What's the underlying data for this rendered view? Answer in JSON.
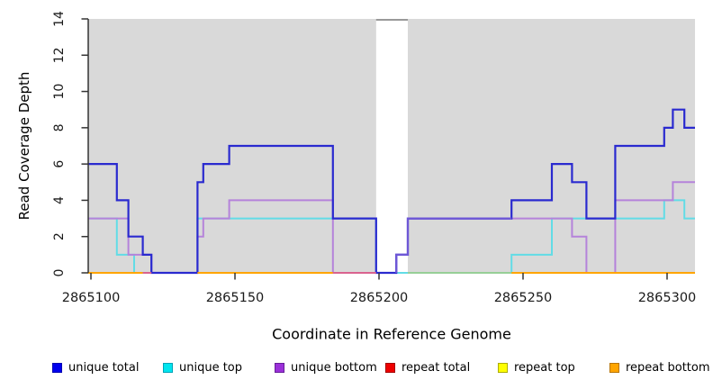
{
  "chart_data": {
    "type": "line",
    "subtype": "step-coverage-plot",
    "title": "",
    "xlabel": "Coordinate in Reference Genome",
    "ylabel": "Read Coverage Depth",
    "x_range": [
      2865099.06,
      2865309.69
    ],
    "ylim": [
      0,
      14
    ],
    "x_ticks": [
      2865100,
      2865150,
      2865200,
      2865250,
      2865300
    ],
    "y_ticks": [
      0,
      2,
      4,
      6,
      8,
      10,
      12,
      14
    ],
    "grid": false,
    "plot_background": "#D9D9D9",
    "gap_region": {
      "x1": 2865199,
      "x2": 2865210,
      "fill": "#FFFFFF",
      "cap_color": "#999999"
    },
    "series": [
      {
        "name": "unique total",
        "line_color": "#2A2ACF",
        "steps": [
          [
            2865099,
            6
          ],
          [
            2865109,
            4
          ],
          [
            2865113,
            2
          ],
          [
            2865118,
            1
          ],
          [
            2865121,
            0
          ],
          [
            2865137,
            5
          ],
          [
            2865139,
            6
          ],
          [
            2865148,
            7
          ],
          [
            2865184,
            3
          ],
          [
            2865199,
            0
          ],
          [
            2865206,
            1
          ],
          [
            2865210,
            3
          ],
          [
            2865246,
            4
          ],
          [
            2865260,
            6
          ],
          [
            2865267,
            5
          ],
          [
            2865272,
            3
          ],
          [
            2865282,
            7
          ],
          [
            2865299,
            8
          ],
          [
            2865302,
            9
          ],
          [
            2865306,
            8
          ]
        ]
      },
      {
        "name": "unique top",
        "line_color": "#62DCE6",
        "steps": [
          [
            2865099,
            3
          ],
          [
            2865109,
            1
          ],
          [
            2865115,
            0
          ],
          [
            2865137,
            3
          ],
          [
            2865199,
            0
          ],
          [
            2865246,
            1
          ],
          [
            2865260,
            3
          ],
          [
            2865299,
            4
          ],
          [
            2865306,
            3
          ]
        ]
      },
      {
        "name": "unique bottom",
        "line_color": "#B583DA",
        "steps": [
          [
            2865099,
            3
          ],
          [
            2865113,
            1
          ],
          [
            2865121,
            0
          ],
          [
            2865137,
            2
          ],
          [
            2865139,
            3
          ],
          [
            2865148,
            4
          ],
          [
            2865184,
            0
          ],
          [
            2865206,
            1
          ],
          [
            2865210,
            3
          ],
          [
            2865267,
            2
          ],
          [
            2865272,
            0
          ],
          [
            2865282,
            4
          ],
          [
            2865302,
            5
          ]
        ]
      },
      {
        "name": "repeat total",
        "line_color": "#EE0000",
        "steps": [
          [
            2865099,
            0
          ]
        ]
      },
      {
        "name": "repeat top",
        "line_color": "#FFFF00",
        "steps": [
          [
            2865099,
            0
          ]
        ]
      },
      {
        "name": "repeat bottom",
        "line_color": "#FFA500",
        "steps": [
          [
            2865099,
            0
          ]
        ]
      }
    ],
    "draw_order": [
      1,
      2,
      0
    ],
    "blend_overlay": {
      "color": "#6E57D6",
      "steps": [
        [
          2865206,
          0
        ],
        [
          2865206,
          1
        ],
        [
          2865210,
          3
        ]
      ],
      "x_end": 2865246
    },
    "baseline_segments": [
      {
        "x1": 2865099,
        "x2": 2865118,
        "color": "#FFA500"
      },
      {
        "x1": 2865118,
        "x2": 2865121,
        "color": "#D9638F"
      },
      {
        "x1": 2865137,
        "x2": 2865184,
        "color": "#FFA500"
      },
      {
        "x1": 2865184,
        "x2": 2865199,
        "color": "#D9638F"
      },
      {
        "x1": 2865210,
        "x2": 2865246,
        "color": "#97CF97"
      },
      {
        "x1": 2865246,
        "x2": 2865309.69,
        "color": "#FFA500"
      }
    ],
    "axis_color": "#333333",
    "tick_label_color": "#1A1A1A"
  },
  "legend": {
    "items": [
      {
        "label": "unique total",
        "fill": "#0000EE",
        "border": "#0000B2"
      },
      {
        "label": "unique top",
        "fill": "#00E5EE",
        "border": "#00A3B8"
      },
      {
        "label": "unique bottom",
        "fill": "#9B30D9",
        "border": "#671E99"
      },
      {
        "label": "repeat total",
        "fill": "#EE0000",
        "border": "#A30000"
      },
      {
        "label": "repeat top",
        "fill": "#FFFF00",
        "border": "#ADAD00"
      },
      {
        "label": "repeat bottom",
        "fill": "#FFA500",
        "border": "#B87400"
      }
    ]
  }
}
